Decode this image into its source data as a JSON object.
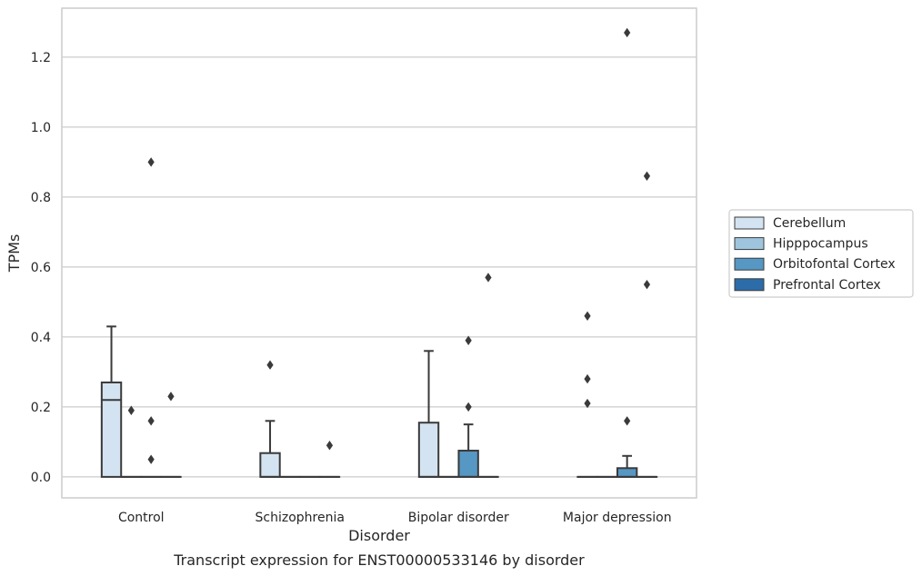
{
  "chart_data": {
    "type": "box",
    "title": "Transcript expression for ENST00000533146 by disorder",
    "xlabel": "Disorder",
    "ylabel": "TPMs",
    "ylim": [
      -0.06,
      1.34
    ],
    "yticks": [
      0.0,
      0.2,
      0.4,
      0.6,
      0.8,
      1.0,
      1.2
    ],
    "ytick_labels": [
      "0.0",
      "0.2",
      "0.4",
      "0.6",
      "0.8",
      "1.0",
      "1.2"
    ],
    "categories": [
      "Control",
      "Schizophrenia",
      "Bipolar disorder",
      "Major depression"
    ],
    "grid": "horizontal",
    "legend_position": "right",
    "series": [
      {
        "name": "Cerebellum",
        "color": "#d4e3f1",
        "boxes": [
          {
            "category": "Control",
            "whislo": 0.0,
            "q1": 0.0,
            "median": 0.22,
            "q3": 0.27,
            "whishi": 0.43,
            "fliers": []
          },
          {
            "category": "Schizophrenia",
            "whislo": 0.0,
            "q1": 0.0,
            "median": 0.0,
            "q3": 0.068,
            "whishi": 0.16,
            "fliers": [
              0.32
            ]
          },
          {
            "category": "Bipolar disorder",
            "whislo": 0.0,
            "q1": 0.0,
            "median": 0.0,
            "q3": 0.155,
            "whishi": 0.36,
            "fliers": []
          },
          {
            "category": "Major depression",
            "whislo": 0.0,
            "q1": 0.0,
            "median": 0.0,
            "q3": 0.0,
            "whishi": 0.0,
            "fliers": [
              0.21,
              0.28,
              0.46
            ]
          }
        ]
      },
      {
        "name": "Hipppocampus",
        "color": "#9fc5de",
        "boxes": [
          {
            "category": "Control",
            "whislo": 0.0,
            "q1": 0.0,
            "median": 0.0,
            "q3": 0.0,
            "whishi": 0.0,
            "fliers": [
              0.19
            ]
          },
          {
            "category": "Schizophrenia",
            "whislo": 0.0,
            "q1": 0.0,
            "median": 0.0,
            "q3": 0.0,
            "whishi": 0.0,
            "fliers": []
          },
          {
            "category": "Bipolar disorder",
            "whislo": 0.0,
            "q1": 0.0,
            "median": 0.0,
            "q3": 0.0,
            "whishi": 0.0,
            "fliers": []
          },
          {
            "category": "Major depression",
            "whislo": 0.0,
            "q1": 0.0,
            "median": 0.0,
            "q3": 0.0,
            "whishi": 0.0,
            "fliers": []
          }
        ]
      },
      {
        "name": "Orbitofontal Cortex",
        "color": "#5697c4",
        "boxes": [
          {
            "category": "Control",
            "whislo": 0.0,
            "q1": 0.0,
            "median": 0.0,
            "q3": 0.0,
            "whishi": 0.0,
            "fliers": [
              0.05,
              0.16,
              0.9
            ]
          },
          {
            "category": "Schizophrenia",
            "whislo": 0.0,
            "q1": 0.0,
            "median": 0.0,
            "q3": 0.0,
            "whishi": 0.0,
            "fliers": []
          },
          {
            "category": "Bipolar disorder",
            "whislo": 0.0,
            "q1": 0.0,
            "median": 0.0,
            "q3": 0.075,
            "whishi": 0.15,
            "fliers": [
              0.2,
              0.39
            ]
          },
          {
            "category": "Major depression",
            "whislo": 0.0,
            "q1": 0.0,
            "median": 0.0,
            "q3": 0.025,
            "whishi": 0.06,
            "fliers": [
              0.16,
              1.27
            ]
          }
        ]
      },
      {
        "name": "Prefrontal Cortex",
        "color": "#2c6ca8",
        "boxes": [
          {
            "category": "Control",
            "whislo": 0.0,
            "q1": 0.0,
            "median": 0.0,
            "q3": 0.0,
            "whishi": 0.0,
            "fliers": [
              0.23
            ]
          },
          {
            "category": "Schizophrenia",
            "whislo": 0.0,
            "q1": 0.0,
            "median": 0.0,
            "q3": 0.0,
            "whishi": 0.0,
            "fliers": [
              0.09
            ]
          },
          {
            "category": "Bipolar disorder",
            "whislo": 0.0,
            "q1": 0.0,
            "median": 0.0,
            "q3": 0.0,
            "whishi": 0.0,
            "fliers": [
              0.57
            ]
          },
          {
            "category": "Major depression",
            "whislo": 0.0,
            "q1": 0.0,
            "median": 0.0,
            "q3": 0.0,
            "whishi": 0.0,
            "fliers": [
              0.55,
              0.86
            ]
          }
        ]
      }
    ]
  }
}
